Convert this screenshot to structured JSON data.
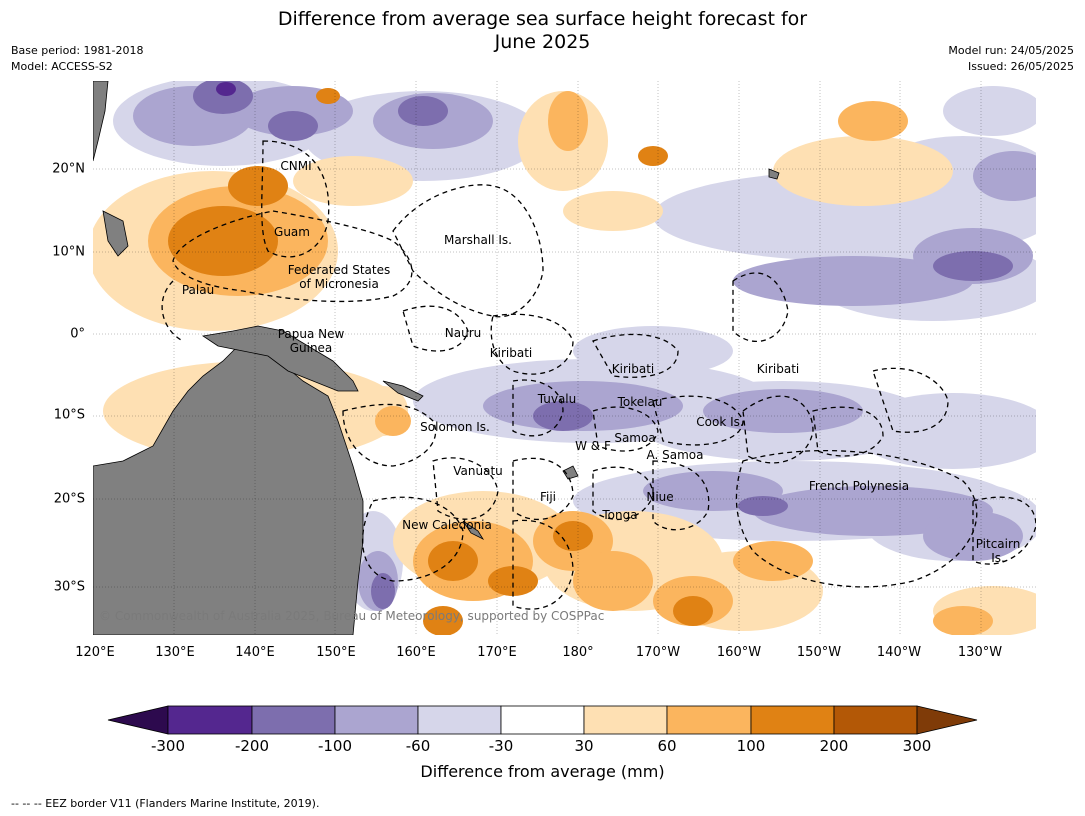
{
  "title_line1": "Difference from average sea surface height forecast for",
  "title_line2": "June 2025",
  "base_period": "Base period: 1981-2018",
  "model": "Model: ACCESS-S2",
  "model_run": "Model run: 24/05/2025",
  "issued": "Issued: 26/05/2025",
  "copyright": "© Commonwealth of Australia 2025, Bureau of Meteorology, supported by COSPPac",
  "colorbar_label": "Difference from average (mm)",
  "footnote": "--  --  -- EEZ border V11 (Flanders Marine Institute, 2019).",
  "latitude_labels": [
    "20°N",
    "10°N",
    "0°",
    "10°S",
    "20°S",
    "30°S"
  ],
  "longitude_labels": [
    "120°E",
    "130°E",
    "140°E",
    "150°E",
    "160°E",
    "170°E",
    "180°",
    "170°W",
    "160°W",
    "150°W",
    "140°W",
    "130°W"
  ],
  "colorbar_ticks": [
    "-300",
    "-200",
    "-100",
    "-60",
    "-30",
    "30",
    "60",
    "100",
    "200",
    "300"
  ],
  "colors": {
    "below_-300": "#2d0a4e",
    "-300_-200": "#54278f",
    "-200_-100": "#7d6eae",
    "-100_-60": "#aba5d0",
    "-60_-30": "#d6d6ea",
    "-30_30": "#ffffff",
    "30_60": "#fee0b3",
    "60_100": "#fbb55e",
    "100_200": "#e08214",
    "200_300": "#b35806",
    "above_300": "#7f3b08",
    "land": "#808080"
  },
  "territories": {
    "cnmi": "CNMI",
    "guam": "Guam",
    "marshall": "Marshall Is.",
    "fsm_line1": "Federated States",
    "fsm_line2": "of Micronesia",
    "palau": "Palau",
    "png_line1": "Papua New",
    "png_line2": "Guinea",
    "nauru": "Nauru",
    "kiribati_w": "Kiribati",
    "kiribati_c": "Kiribati",
    "kiribati_e": "Kiribati",
    "tuvalu": "Tuvalu",
    "tokelau": "Tokelau",
    "cook": "Cook Is.",
    "solomon": "Solomon Is.",
    "samoa": "Samoa",
    "wf": "W & F",
    "asamoa": "A. Samoa",
    "vanuatu": "Vanuatu",
    "fiji": "Fiji",
    "niue": "Niue",
    "tonga": "Tonga",
    "frpoly": "French Polynesia",
    "newcal": "New Caledonia",
    "pitcairn_line1": "Pitcairn",
    "pitcairn_line2": "Is."
  }
}
